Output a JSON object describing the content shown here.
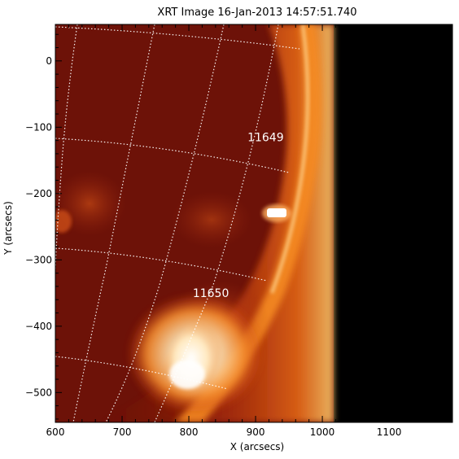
{
  "title": "XRT Image 16-Jan-2013 14:57:51.740",
  "xlabel": "X (arcsecs)",
  "ylabel": "Y (arcsecs)",
  "x_ticks": [
    "600",
    "700",
    "800",
    "900",
    "1000",
    "1100"
  ],
  "y_ticks": [
    "0",
    "−100",
    "−200",
    "−300",
    "−400",
    "−500"
  ],
  "regions": [
    {
      "label": "11649",
      "x": 915,
      "y": -115
    },
    {
      "label": "11650",
      "x": 833,
      "y": -350
    }
  ],
  "axis": {
    "xlim": [
      600,
      1195
    ],
    "ylim": [
      -545,
      55
    ]
  },
  "colors": {
    "disk": "#6d1208",
    "limb": "#f08018",
    "flare": "#fff2d8",
    "off_limb": "#000000",
    "grid": "#ffffff"
  }
}
